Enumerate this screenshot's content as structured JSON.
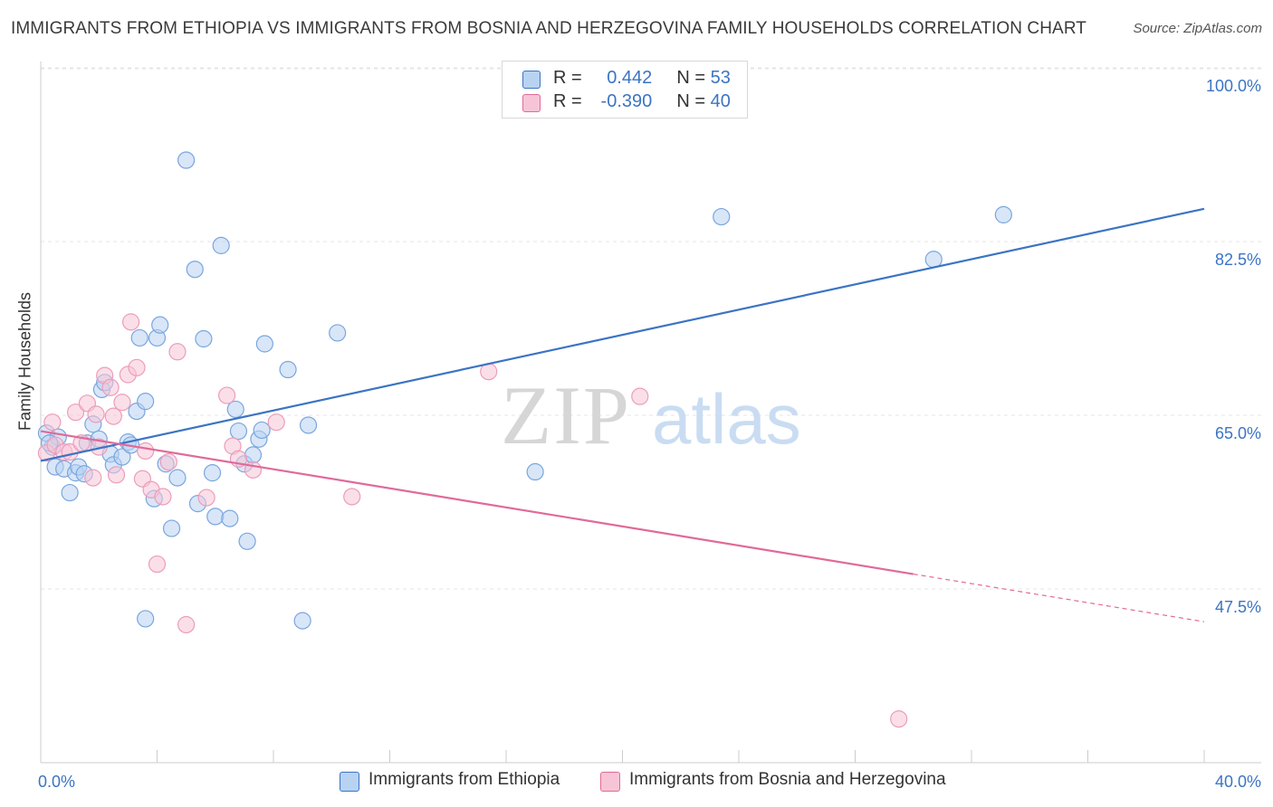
{
  "title": "IMMIGRANTS FROM ETHIOPIA VS IMMIGRANTS FROM BOSNIA AND HERZEGOVINA FAMILY HOUSEHOLDS CORRELATION CHART",
  "source": "Source: ZipAtlas.com",
  "watermark": {
    "zip": "ZIP",
    "atlas": "atlas"
  },
  "legend": {
    "series1": {
      "r_label": "R =",
      "r_value": "0.442",
      "n_label": "N =",
      "n_value": "53"
    },
    "series2": {
      "r_label": "R =",
      "r_value": "-0.390",
      "n_label": "N =",
      "n_value": "40"
    }
  },
  "colors": {
    "blue": "#3b74c4",
    "blue_fill": "#b8d2f2",
    "pink": "#e06a98",
    "pink_fill": "#f7c4d6",
    "grid": "#e4e4e4"
  },
  "chart_data": {
    "type": "scatter",
    "xlabel": "",
    "ylabel": "Family Households",
    "xlim": [
      0,
      40
    ],
    "ylim": [
      30,
      102
    ],
    "x_tick_labels": {
      "min": "0.0%",
      "max": "40.0%"
    },
    "y_ticks": [
      47.5,
      65.0,
      82.5,
      100.0
    ],
    "y_tick_labels": [
      "47.5%",
      "65.0%",
      "82.5%",
      "100.0%"
    ],
    "series": [
      {
        "name": "Immigrants from Ethiopia",
        "color": "#3b74c4",
        "trend": {
          "x": [
            0.0,
            40.0
          ],
          "y": [
            60.4,
            85.8
          ]
        },
        "points": [
          [
            0.2,
            63.2
          ],
          [
            0.4,
            61.8
          ],
          [
            0.6,
            62.8
          ],
          [
            0.3,
            62.2
          ],
          [
            0.5,
            59.8
          ],
          [
            0.8,
            59.6
          ],
          [
            1.0,
            57.2
          ],
          [
            1.2,
            59.2
          ],
          [
            1.3,
            59.8
          ],
          [
            1.5,
            59.1
          ],
          [
            1.6,
            62.2
          ],
          [
            1.8,
            64.1
          ],
          [
            2.0,
            62.6
          ],
          [
            2.1,
            67.6
          ],
          [
            2.2,
            68.3
          ],
          [
            2.4,
            61.1
          ],
          [
            2.5,
            60.0
          ],
          [
            2.8,
            60.8
          ],
          [
            3.0,
            62.3
          ],
          [
            3.1,
            62.0
          ],
          [
            3.3,
            65.4
          ],
          [
            3.4,
            72.8
          ],
          [
            3.6,
            66.4
          ],
          [
            3.9,
            56.6
          ],
          [
            4.0,
            72.8
          ],
          [
            4.1,
            74.1
          ],
          [
            4.3,
            60.1
          ],
          [
            4.5,
            53.6
          ],
          [
            4.7,
            58.7
          ],
          [
            5.0,
            90.7
          ],
          [
            5.3,
            79.7
          ],
          [
            5.4,
            56.1
          ],
          [
            5.6,
            72.7
          ],
          [
            5.9,
            59.2
          ],
          [
            6.0,
            54.8
          ],
          [
            6.2,
            82.1
          ],
          [
            6.5,
            54.6
          ],
          [
            6.7,
            65.6
          ],
          [
            6.8,
            63.4
          ],
          [
            7.0,
            60.1
          ],
          [
            7.1,
            52.3
          ],
          [
            7.3,
            61.0
          ],
          [
            7.5,
            62.6
          ],
          [
            7.6,
            63.5
          ],
          [
            7.7,
            72.2
          ],
          [
            8.5,
            69.6
          ],
          [
            9.2,
            64.0
          ],
          [
            10.2,
            73.3
          ],
          [
            3.6,
            44.5
          ],
          [
            9.0,
            44.3
          ],
          [
            17.0,
            59.3
          ],
          [
            23.4,
            85.0
          ],
          [
            30.7,
            80.7
          ],
          [
            33.1,
            85.2
          ]
        ]
      },
      {
        "name": "Immigrants from Bosnia and Herzegovina",
        "color": "#e06a98",
        "trend": {
          "x": [
            0.0,
            30.0
          ],
          "y": [
            63.4,
            49.0
          ],
          "dashed_to": {
            "x": 40.0,
            "y": 44.2
          }
        },
        "points": [
          [
            0.2,
            61.2
          ],
          [
            0.4,
            64.3
          ],
          [
            0.5,
            62.0
          ],
          [
            0.8,
            61.3
          ],
          [
            1.0,
            61.3
          ],
          [
            1.2,
            65.3
          ],
          [
            1.4,
            62.2
          ],
          [
            1.6,
            66.2
          ],
          [
            1.8,
            58.7
          ],
          [
            1.9,
            65.1
          ],
          [
            2.0,
            61.8
          ],
          [
            2.2,
            69.0
          ],
          [
            2.4,
            67.8
          ],
          [
            2.5,
            64.9
          ],
          [
            2.6,
            59.0
          ],
          [
            2.8,
            66.3
          ],
          [
            3.0,
            69.1
          ],
          [
            3.1,
            74.4
          ],
          [
            3.3,
            69.8
          ],
          [
            3.5,
            58.6
          ],
          [
            3.6,
            61.4
          ],
          [
            3.8,
            57.5
          ],
          [
            4.0,
            50.0
          ],
          [
            4.2,
            56.8
          ],
          [
            4.4,
            60.3
          ],
          [
            4.7,
            71.4
          ],
          [
            5.0,
            43.9
          ],
          [
            5.7,
            56.7
          ],
          [
            6.4,
            67.0
          ],
          [
            6.6,
            61.9
          ],
          [
            6.8,
            60.6
          ],
          [
            7.3,
            59.5
          ],
          [
            8.1,
            64.3
          ],
          [
            10.7,
            56.8
          ],
          [
            15.4,
            69.4
          ],
          [
            20.6,
            66.9
          ],
          [
            29.5,
            34.4
          ]
        ]
      }
    ]
  }
}
